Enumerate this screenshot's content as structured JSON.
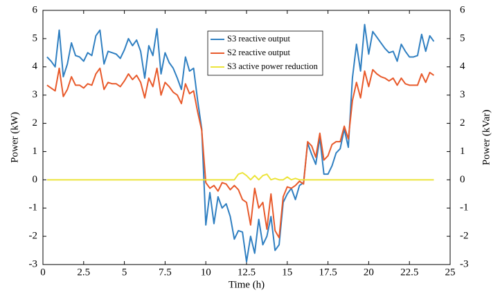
{
  "chart_data": {
    "type": "line",
    "xlabel": "Time (h)",
    "ylabel": "Power (kW)",
    "y2label": "Power (kVar)",
    "xlim": [
      0,
      25
    ],
    "xticks": [
      0,
      2.5,
      5,
      7.5,
      10,
      12.5,
      15,
      17.5,
      20,
      22.5,
      25
    ],
    "ylim": [
      -3,
      6
    ],
    "yticks": [
      -3,
      -2,
      -1,
      0,
      1,
      2,
      3,
      4,
      5,
      6
    ],
    "y2lim": [
      -3,
      6
    ],
    "y2ticks": [
      -3,
      -2,
      -1,
      0,
      1,
      2,
      3,
      4,
      5,
      6
    ],
    "legend": "upper center",
    "x": [
      0.25,
      0.5,
      0.75,
      1,
      1.25,
      1.5,
      1.75,
      2,
      2.25,
      2.5,
      2.75,
      3,
      3.25,
      3.5,
      3.75,
      4,
      4.25,
      4.5,
      4.75,
      5,
      5.25,
      5.5,
      5.75,
      6,
      6.25,
      6.5,
      6.75,
      7,
      7.25,
      7.5,
      7.75,
      8,
      8.25,
      8.5,
      8.75,
      9,
      9.25,
      9.5,
      9.75,
      10,
      10.25,
      10.5,
      10.75,
      11,
      11.25,
      11.5,
      11.75,
      12,
      12.25,
      12.5,
      12.75,
      13,
      13.25,
      13.5,
      13.75,
      14,
      14.25,
      14.5,
      14.75,
      15,
      15.25,
      15.5,
      15.75,
      16,
      16.25,
      16.5,
      16.75,
      17,
      17.25,
      17.5,
      17.75,
      18,
      18.25,
      18.5,
      18.75,
      19,
      19.25,
      19.5,
      19.75,
      20,
      20.25,
      20.5,
      20.75,
      21,
      21.25,
      21.5,
      21.75,
      22,
      22.25,
      22.5,
      22.75,
      23,
      23.25,
      23.5,
      23.75,
      24
    ],
    "series": [
      {
        "name": "S3 reactive output",
        "color": "#2f7fc1",
        "axis": "y2",
        "values": [
          4.35,
          4.2,
          4.0,
          5.3,
          3.65,
          4.1,
          4.85,
          4.4,
          4.35,
          4.2,
          4.5,
          4.4,
          5.1,
          5.3,
          4.1,
          4.55,
          4.5,
          4.45,
          4.3,
          4.6,
          5.0,
          4.75,
          4.95,
          4.55,
          3.6,
          4.75,
          4.4,
          5.35,
          3.75,
          4.5,
          4.15,
          3.95,
          3.6,
          3.2,
          4.35,
          3.85,
          3.95,
          2.8,
          1.8,
          -1.6,
          -0.45,
          -1.55,
          -0.6,
          -1.0,
          -0.85,
          -1.3,
          -2.1,
          -1.8,
          -1.85,
          -2.9,
          -2.0,
          -2.6,
          -1.4,
          -2.3,
          -2.0,
          -1.3,
          -2.5,
          -2.3,
          -0.8,
          -0.5,
          -0.3,
          -0.7,
          -0.2,
          -0.1,
          1.3,
          0.9,
          0.55,
          1.5,
          0.2,
          0.2,
          0.5,
          0.95,
          1.1,
          1.8,
          1.15,
          3.6,
          4.8,
          3.85,
          5.5,
          4.45,
          5.25,
          5.05,
          4.85,
          4.65,
          4.5,
          4.55,
          4.2,
          4.8,
          4.55,
          4.35,
          4.35,
          4.4,
          5.15,
          4.55,
          5.1,
          4.9
        ]
      },
      {
        "name": "S2 reactive output",
        "color": "#e8592a",
        "axis": "y2",
        "values": [
          3.35,
          3.25,
          3.15,
          3.95,
          2.95,
          3.2,
          3.65,
          3.35,
          3.35,
          3.25,
          3.4,
          3.35,
          3.75,
          3.95,
          3.2,
          3.45,
          3.4,
          3.4,
          3.3,
          3.5,
          3.75,
          3.55,
          3.7,
          3.45,
          2.9,
          3.6,
          3.3,
          3.95,
          3.0,
          3.45,
          3.3,
          3.1,
          3.0,
          2.7,
          3.4,
          3.05,
          3.15,
          2.4,
          1.75,
          -0.1,
          -0.3,
          -0.2,
          -0.4,
          -0.1,
          -0.15,
          -0.35,
          -0.2,
          -0.35,
          -0.7,
          -0.8,
          -1.6,
          -0.3,
          -1.0,
          -0.8,
          -1.75,
          -0.5,
          -1.8,
          -2.05,
          -0.6,
          -0.25,
          -0.3,
          -0.2,
          -0.05,
          -0.15,
          1.35,
          1.2,
          0.8,
          1.65,
          0.7,
          0.85,
          1.25,
          1.35,
          1.35,
          1.9,
          1.45,
          2.8,
          3.45,
          2.9,
          3.85,
          3.3,
          3.9,
          3.75,
          3.65,
          3.6,
          3.5,
          3.6,
          3.35,
          3.6,
          3.4,
          3.35,
          3.35,
          3.35,
          3.75,
          3.45,
          3.8,
          3.7
        ]
      },
      {
        "name": "S3 active power reduction",
        "color": "#ece43a",
        "values": [
          0,
          0,
          0,
          0,
          0,
          0,
          0,
          0,
          0,
          0,
          0,
          0,
          0,
          0,
          0,
          0,
          0,
          0,
          0,
          0,
          0,
          0,
          0,
          0,
          0,
          0,
          0,
          0,
          0,
          0,
          0,
          0,
          0,
          0,
          0,
          0,
          0,
          0,
          0,
          0,
          0,
          0,
          0,
          0,
          0,
          0,
          0,
          0.2,
          0.25,
          0.15,
          0.0,
          0.15,
          0.0,
          0.15,
          0.2,
          0.0,
          0.05,
          0.0,
          0.0,
          0.1,
          0.0,
          0.05,
          0.0,
          0,
          0,
          0,
          0,
          0,
          0,
          0,
          0,
          0,
          0,
          0,
          0,
          0,
          0,
          0,
          0,
          0,
          0,
          0,
          0,
          0,
          0,
          0,
          0,
          0,
          0,
          0,
          0,
          0,
          0,
          0,
          0,
          0
        ]
      }
    ]
  }
}
